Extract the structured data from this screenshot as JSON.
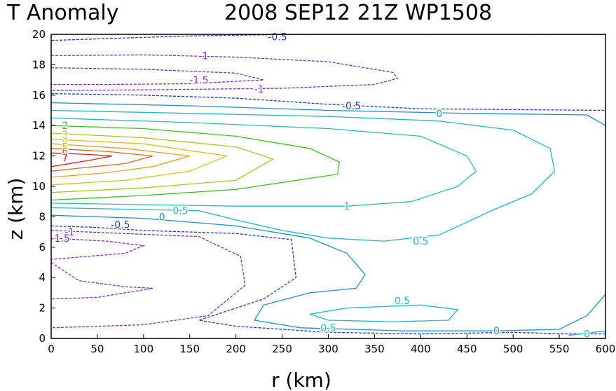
{
  "chart_data": {
    "type": "contour",
    "title": {
      "left": "T Anomaly",
      "right": "2008 SEP12 21Z  WP1508"
    },
    "xlabel": "r (km)",
    "ylabel": "z (km)",
    "xlim": [
      0,
      600
    ],
    "ylim": [
      0,
      20
    ],
    "xticks": [
      "0",
      "50",
      "100",
      "150",
      "200",
      "250",
      "300",
      "350",
      "400",
      "450",
      "500",
      "550",
      "600"
    ],
    "yticks": [
      "0",
      "2",
      "4",
      "6",
      "8",
      "10",
      "12",
      "14",
      "16",
      "18",
      "20"
    ],
    "grid": false,
    "legend": "none",
    "note": "negative contours dashed",
    "contours": [
      {
        "level": "-0.5",
        "color": "#1a3cd6",
        "dashed": true,
        "points": [
          [
            0,
            19.6
          ],
          [
            150,
            19.9
          ],
          [
            270,
            20
          ],
          [
            330,
            20
          ],
          [
            600,
            20
          ]
        ],
        "labels": [
          {
            "x": 245,
            "y": 19.85,
            "text": "-0.5"
          }
        ]
      },
      {
        "level": "-1",
        "color": "#7b2fc0",
        "dashed": true,
        "points": [
          [
            0,
            18.6
          ],
          [
            100,
            18.65
          ],
          [
            200,
            18.5
          ],
          [
            300,
            18.2
          ],
          [
            370,
            17.5
          ],
          [
            375,
            17.1
          ],
          [
            350,
            16.7
          ],
          [
            250,
            16.45
          ],
          [
            100,
            16.35
          ],
          [
            0,
            16.3
          ]
        ],
        "labels": [
          {
            "x": 165,
            "y": 18.6,
            "text": "-1"
          },
          {
            "x": 225,
            "y": 16.4,
            "text": "-1"
          }
        ]
      },
      {
        "level": "-1.5",
        "color": "#7b2fc0",
        "dashed": true,
        "points": [
          [
            0,
            17.8
          ],
          [
            100,
            17.7
          ],
          [
            200,
            17.45
          ],
          [
            230,
            17
          ],
          [
            150,
            16.75
          ],
          [
            50,
            16.7
          ],
          [
            0,
            16.7
          ]
        ],
        "labels": [
          {
            "x": 160,
            "y": 17,
            "text": "-1.5"
          }
        ]
      },
      {
        "level": "-0.5",
        "color": "#1a3cd6",
        "dashed": true,
        "points": [
          [
            0,
            16.1
          ],
          [
            100,
            16
          ],
          [
            200,
            15.8
          ],
          [
            300,
            15.4
          ],
          [
            400,
            15.1
          ],
          [
            600,
            15
          ]
        ],
        "labels": [
          {
            "x": 325,
            "y": 15.3,
            "text": "-0.5"
          }
        ]
      },
      {
        "level": "-0.5",
        "color": "#1a3cd6",
        "dashed": true,
        "points": [
          [
            0,
            7.4
          ],
          [
            50,
            7.3
          ],
          [
            100,
            7.1
          ],
          [
            200,
            6.9
          ],
          [
            260,
            6.5
          ],
          [
            265,
            4
          ],
          [
            230,
            2.6
          ],
          [
            160,
            1.2
          ],
          [
            200,
            0.8
          ],
          [
            300,
            0.4
          ],
          [
            400,
            0.3
          ],
          [
            500,
            0.4
          ],
          [
            560,
            0.3
          ],
          [
            600,
            0.3
          ]
        ],
        "labels": [
          {
            "x": 75,
            "y": 7.5,
            "text": "-0.5"
          }
        ]
      },
      {
        "level": "-1",
        "color": "#7b2fc0",
        "dashed": true,
        "points": [
          [
            0,
            7.1
          ],
          [
            80,
            6.9
          ],
          [
            160,
            6.7
          ],
          [
            205,
            5.4
          ],
          [
            210,
            3.5
          ],
          [
            170,
            1.5
          ],
          [
            100,
            0.9
          ],
          [
            0,
            0.7
          ]
        ],
        "labels": [
          {
            "x": 20,
            "y": 7.0,
            "text": "-1"
          }
        ]
      },
      {
        "level": "-1.5",
        "color": "#7b2fc0",
        "dashed": true,
        "points": [
          [
            0,
            6.6
          ],
          [
            60,
            6.4
          ],
          [
            100,
            6.1
          ],
          [
            80,
            5.6
          ],
          [
            40,
            5.4
          ],
          [
            0,
            5.2
          ]
        ],
        "labels": [
          {
            "x": 10,
            "y": 6.6,
            "text": "-1.5"
          }
        ]
      },
      {
        "level": "-1.5",
        "color": "#7b2fc0",
        "dashed": true,
        "points": [
          [
            0,
            5.0
          ],
          [
            30,
            3.8
          ],
          [
            80,
            3.4
          ],
          [
            110,
            3.3
          ],
          [
            50,
            2.7
          ],
          [
            0,
            2.6
          ]
        ],
        "labels": []
      },
      {
        "level": "0",
        "color": "#1f8fd0",
        "dashed": false,
        "points": [
          [
            0,
            15.5
          ],
          [
            150,
            15.3
          ],
          [
            300,
            15
          ],
          [
            450,
            14.8
          ],
          [
            580,
            14.7
          ],
          [
            600,
            14
          ]
        ],
        "labels": [
          {
            "x": 420,
            "y": 14.8,
            "text": "0"
          }
        ]
      },
      {
        "level": "0",
        "color": "#1f8fd0",
        "dashed": false,
        "points": [
          [
            0,
            8.1
          ],
          [
            100,
            7.9
          ],
          [
            200,
            7.4
          ],
          [
            280,
            6.6
          ],
          [
            320,
            5.6
          ],
          [
            340,
            4.2
          ],
          [
            330,
            3.3
          ],
          [
            280,
            3.0
          ],
          [
            230,
            2.2
          ],
          [
            220,
            1.2
          ],
          [
            270,
            0.7
          ],
          [
            380,
            0.5
          ],
          [
            480,
            0.5
          ],
          [
            550,
            0.6
          ],
          [
            580,
            1.5
          ],
          [
            600,
            2.9
          ]
        ],
        "labels": [
          {
            "x": 120,
            "y": 8.0,
            "text": "0"
          },
          {
            "x": 482,
            "y": 0.5,
            "text": "0"
          }
        ]
      },
      {
        "level": "0",
        "color": "#1fb8c8",
        "dashed": false,
        "points": [
          [
            560,
            0.2
          ],
          [
            600,
            0.5
          ]
        ],
        "labels": [
          {
            "x": 580,
            "y": 0.3,
            "text": "0"
          }
        ]
      },
      {
        "level": "0.5",
        "color": "#1fb8c8",
        "dashed": false,
        "points": [
          [
            0,
            15
          ],
          [
            150,
            14.8
          ],
          [
            300,
            14.6
          ],
          [
            420,
            14.3
          ],
          [
            500,
            13.7
          ],
          [
            540,
            12.5
          ],
          [
            545,
            11
          ],
          [
            520,
            9.5
          ],
          [
            480,
            8.5
          ],
          [
            420,
            6.8
          ],
          [
            360,
            6.4
          ],
          [
            300,
            6.6
          ],
          [
            250,
            7.1
          ],
          [
            200,
            7.8
          ],
          [
            160,
            8.4
          ],
          [
            0,
            8.6
          ]
        ],
        "labels": [
          {
            "x": 400,
            "y": 6.4,
            "text": "0.5"
          },
          {
            "x": 140,
            "y": 8.4,
            "text": "0.5"
          }
        ]
      },
      {
        "level": "0.5",
        "color": "#1fb8c8",
        "dashed": false,
        "points": [
          [
            280,
            1.6
          ],
          [
            320,
            2.0
          ],
          [
            400,
            2.2
          ],
          [
            440,
            1.9
          ],
          [
            430,
            1.2
          ],
          [
            370,
            1.1
          ],
          [
            300,
            1.2
          ],
          [
            280,
            1.6
          ]
        ],
        "labels": [
          {
            "x": 380,
            "y": 2.5,
            "text": "0.5"
          },
          {
            "x": 300,
            "y": 0.7,
            "text": "0.5"
          }
        ]
      },
      {
        "level": "1",
        "color": "#22c0b0",
        "dashed": false,
        "points": [
          [
            0,
            14.5
          ],
          [
            150,
            14.2
          ],
          [
            300,
            13.8
          ],
          [
            400,
            13.3
          ],
          [
            450,
            12
          ],
          [
            460,
            11
          ],
          [
            440,
            10
          ],
          [
            390,
            9.0
          ],
          [
            320,
            8.7
          ],
          [
            200,
            8.7
          ],
          [
            0,
            8.9
          ]
        ],
        "labels": [
          {
            "x": 320,
            "y": 8.7,
            "text": "1"
          }
        ]
      },
      {
        "level": "2",
        "color": "#3ac41e",
        "dashed": false,
        "points": [
          [
            0,
            14.0
          ],
          [
            100,
            13.8
          ],
          [
            200,
            13.3
          ],
          [
            280,
            12.5
          ],
          [
            312,
            11.6
          ],
          [
            310,
            10.8
          ],
          [
            200,
            9.8
          ],
          [
            100,
            9.4
          ],
          [
            0,
            9.1
          ]
        ],
        "labels": [
          {
            "x": 15,
            "y": 14.0,
            "text": "2"
          }
        ]
      },
      {
        "level": "3",
        "color": "#9ccd1e",
        "dashed": false,
        "points": [
          [
            0,
            13.5
          ],
          [
            100,
            13.2
          ],
          [
            200,
            12.6
          ],
          [
            240,
            11.8
          ],
          [
            200,
            10.4
          ],
          [
            100,
            9.9
          ],
          [
            0,
            9.6
          ]
        ],
        "labels": [
          {
            "x": 15,
            "y": 13.4,
            "text": "3"
          }
        ]
      },
      {
        "level": "4",
        "color": "#d4c21e",
        "dashed": false,
        "points": [
          [
            0,
            13.1
          ],
          [
            100,
            12.8
          ],
          [
            190,
            12
          ],
          [
            150,
            11
          ],
          [
            80,
            10.4
          ],
          [
            0,
            10.1
          ]
        ],
        "labels": [
          {
            "x": 15,
            "y": 13.0,
            "text": "4"
          }
        ]
      },
      {
        "level": "5",
        "color": "#e8a020",
        "dashed": false,
        "points": [
          [
            0,
            12.8
          ],
          [
            80,
            12.5
          ],
          [
            150,
            12
          ],
          [
            110,
            11.3
          ],
          [
            60,
            10.9
          ],
          [
            0,
            10.6
          ]
        ],
        "labels": [
          {
            "x": 15,
            "y": 12.6,
            "text": "5"
          }
        ]
      },
      {
        "level": "6",
        "color": "#e06818",
        "dashed": false,
        "points": [
          [
            0,
            12.5
          ],
          [
            60,
            12.3
          ],
          [
            110,
            12
          ],
          [
            80,
            11.5
          ],
          [
            30,
            11.2
          ],
          [
            0,
            11.0
          ]
        ],
        "labels": [
          {
            "x": 15,
            "y": 12.3,
            "text": "6"
          }
        ]
      },
      {
        "level": "7",
        "color": "#d81c1c",
        "dashed": false,
        "points": [
          [
            0,
            12.2
          ],
          [
            40,
            12.1
          ],
          [
            66,
            12
          ],
          [
            40,
            11.7
          ],
          [
            0,
            11.3
          ]
        ],
        "labels": [
          {
            "x": 15,
            "y": 11.9,
            "text": "7"
          }
        ]
      }
    ]
  }
}
